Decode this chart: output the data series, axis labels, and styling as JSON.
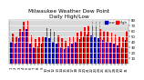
{
  "title": "Milwaukee Weather Dew Point",
  "subtitle": "Daily High/Low",
  "days": [
    "1",
    "2",
    "3",
    "4",
    "5",
    "6",
    "7",
    "8",
    "9",
    "10",
    "11",
    "12",
    "13",
    "14",
    "15",
    "16",
    "17",
    "18",
    "19",
    "20",
    "21",
    "22",
    "23",
    "24",
    "25",
    "26",
    "27",
    "28",
    "29",
    "30",
    "31"
  ],
  "highs": [
    55,
    50,
    62,
    76,
    78,
    52,
    45,
    48,
    50,
    65,
    63,
    58,
    52,
    46,
    42,
    48,
    50,
    56,
    60,
    66,
    70,
    68,
    66,
    63,
    60,
    58,
    56,
    53,
    50,
    48,
    60
  ],
  "lows": [
    40,
    36,
    46,
    58,
    62,
    36,
    30,
    32,
    36,
    48,
    46,
    40,
    36,
    30,
    26,
    32,
    36,
    40,
    44,
    50,
    53,
    51,
    48,
    46,
    43,
    40,
    38,
    36,
    33,
    30,
    43
  ],
  "dashed_lines": [
    21,
    22,
    23
  ],
  "bar_width": 0.38,
  "high_color": "#ff0000",
  "low_color": "#0000cc",
  "bg_color": "#ffffff",
  "plot_bg_color": "#d8d8d8",
  "ylim": [
    0,
    80
  ],
  "yticks": [
    10,
    20,
    30,
    40,
    50,
    60,
    70,
    80
  ],
  "title_fontsize": 4.2,
  "tick_fontsize": 2.8,
  "legend_fontsize": 2.8,
  "grid_color": "#ffffff"
}
